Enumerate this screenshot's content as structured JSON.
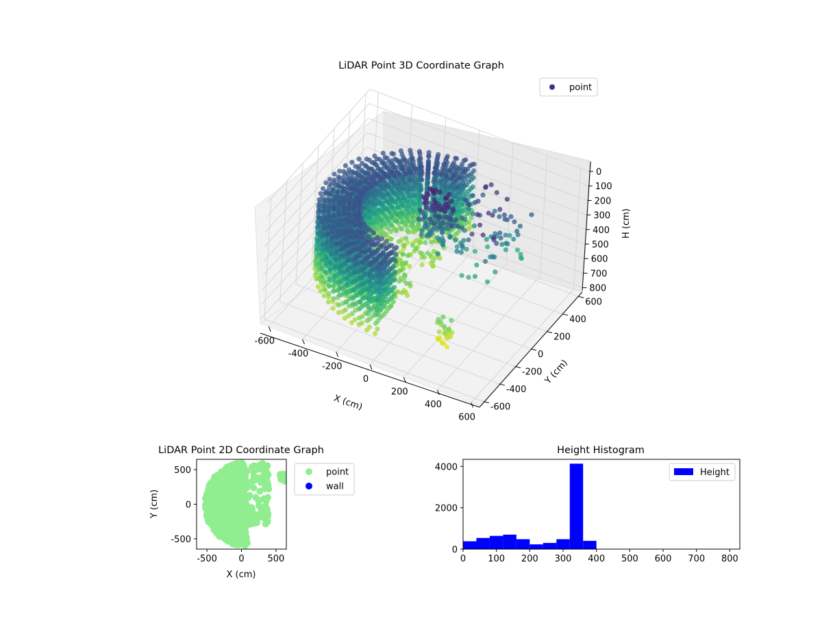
{
  "chart_data": [
    {
      "type": "scatter",
      "title": "LiDAR Point 3D Coordinate Graph",
      "xlabel": "X (cm)",
      "ylabel": "Y (cm)",
      "zlabel": "H (cm)",
      "xlim": [
        -650,
        650
      ],
      "ylim": [
        -650,
        650
      ],
      "zlim": [
        0,
        830
      ],
      "z_inverted": true,
      "x_ticks": [
        "-600",
        "-400",
        "-200",
        "0",
        "200",
        "400",
        "600"
      ],
      "y_ticks": [
        "-600",
        "-400",
        "-200",
        "0",
        "200",
        "400",
        "600"
      ],
      "z_ticks": [
        "0",
        "100",
        "200",
        "300",
        "400",
        "500",
        "600",
        "700",
        "800"
      ],
      "legend": [
        "point"
      ],
      "legend_position": "top-right",
      "colormap": "viridis",
      "grid": true
    },
    {
      "type": "scatter",
      "title": "LiDAR Point 2D Coordinate Graph",
      "xlabel": "X (cm)",
      "ylabel": "Y (cm)",
      "xlim": [
        -650,
        650
      ],
      "ylim": [
        -650,
        650
      ],
      "x_ticks": [
        "-500",
        "0",
        "500"
      ],
      "y_ticks": [
        "-500",
        "0",
        "500"
      ],
      "series": [
        {
          "name": "point",
          "color": "#90ee90"
        },
        {
          "name": "wall",
          "color": "#0000ff"
        }
      ],
      "legend_position": "outside-right"
    },
    {
      "type": "bar",
      "title": "Height Histogram",
      "bins_edges": [
        0,
        40,
        80,
        120,
        160,
        200,
        240,
        280,
        320,
        360,
        400,
        440,
        480,
        520,
        560,
        600,
        640,
        680,
        720,
        760,
        800
      ],
      "values": [
        380,
        540,
        640,
        700,
        480,
        230,
        300,
        480,
        4130,
        400,
        0,
        0,
        0,
        0,
        0,
        0,
        0,
        0,
        0,
        0
      ],
      "xlim": [
        0,
        830
      ],
      "ylim": [
        0,
        4340
      ],
      "x_ticks": [
        "0",
        "100",
        "200",
        "300",
        "400",
        "500",
        "600",
        "700",
        "800"
      ],
      "y_ticks": [
        "0",
        "2000",
        "4000"
      ],
      "legend": [
        "Height"
      ],
      "legend_position": "top-right",
      "color": "#0000ff"
    }
  ]
}
